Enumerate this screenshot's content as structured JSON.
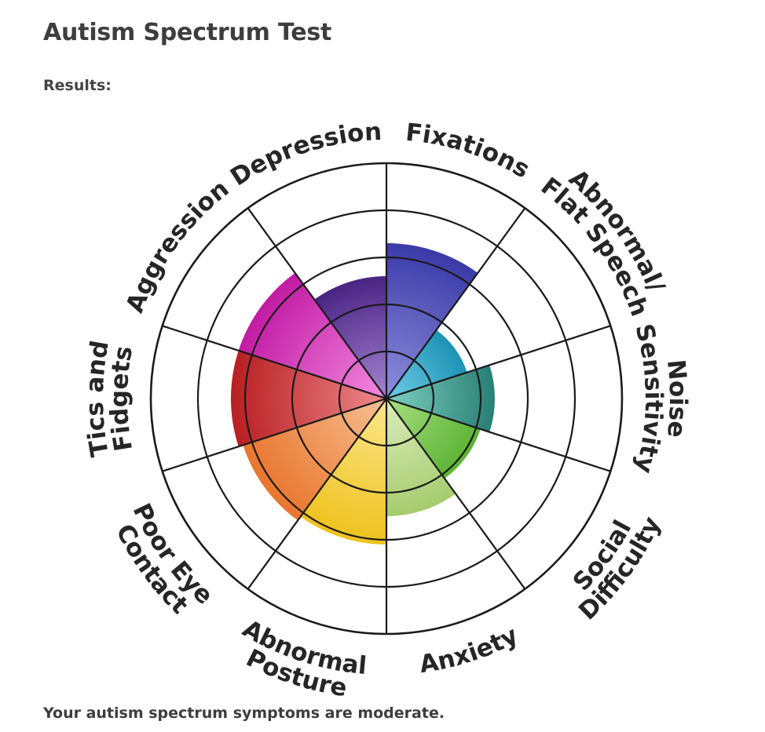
{
  "page": {
    "title": "Autism Spectrum Test",
    "results_label": "Results:",
    "summary": "Your autism spectrum symptoms are moderate."
  },
  "chart_data": {
    "type": "polar-area",
    "title": "",
    "scale_max": 5,
    "rings": [
      1,
      2,
      3,
      4,
      5
    ],
    "categories": [
      {
        "lines": [
          "Fixations"
        ],
        "value": 3.3,
        "color": "#3a3aa8",
        "color_inner": "#8f8fdb"
      },
      {
        "lines": [
          "Abnormal/",
          "Flat Speech"
        ],
        "value": 1.8,
        "color": "#1d93b5",
        "color_inner": "#6fcde6"
      },
      {
        "lines": [
          "Noise",
          "Sensitivity"
        ],
        "value": 2.3,
        "color": "#2a7f74",
        "color_inner": "#7ed1c1"
      },
      {
        "lines": [
          "Social",
          "Difficulty"
        ],
        "value": 2.1,
        "color": "#5cb334",
        "color_inner": "#a8df82"
      },
      {
        "lines": [
          "Anxiety"
        ],
        "value": 2.5,
        "color": "#a6cc6e",
        "color_inner": "#dcedbd"
      },
      {
        "lines": [
          "Abnormal",
          "Posture"
        ],
        "value": 3.1,
        "color": "#efc21e",
        "color_inner": "#fbe78e"
      },
      {
        "lines": [
          "Poor Eye",
          "Contact"
        ],
        "value": 3.2,
        "color": "#e8762e",
        "color_inner": "#f8bf93"
      },
      {
        "lines": [
          "Tics and",
          "Fidgets"
        ],
        "value": 3.3,
        "color": "#b81f22",
        "color_inner": "#ee8a8c"
      },
      {
        "lines": [
          "Aggression"
        ],
        "value": 3.3,
        "color": "#c21ba4",
        "color_inner": "#f28be0"
      },
      {
        "lines": [
          "Depression"
        ],
        "value": 2.6,
        "color": "#4a2484",
        "color_inner": "#a585d2"
      }
    ]
  }
}
